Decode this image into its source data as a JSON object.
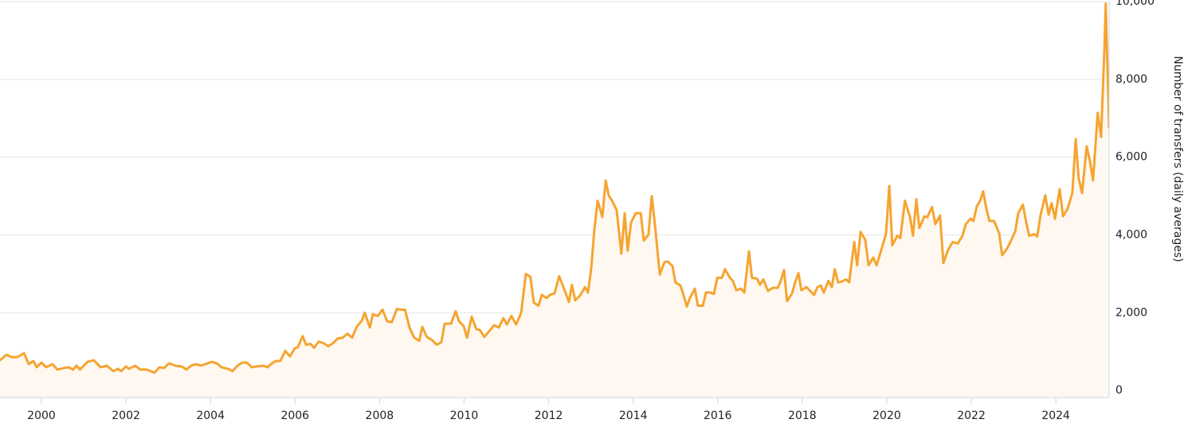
{
  "chart_data": {
    "type": "area",
    "y_label": "Number of transfers (daily averages)",
    "xlim": [
      1999.02,
      2025.26
    ],
    "xticks": [
      2000,
      2002,
      2004,
      2006,
      2008,
      2010,
      2012,
      2014,
      2016,
      2018,
      2020,
      2022,
      2024
    ],
    "ylim": [
      -180,
      10000
    ],
    "yticks": [
      0,
      {
        "value": 2000,
        "label": "2,000"
      },
      {
        "value": 4000,
        "label": "4,000"
      },
      {
        "value": 6000,
        "label": "6,000"
      },
      {
        "value": 8000,
        "label": "8,000"
      },
      {
        "value": 10000,
        "label": "10,000"
      }
    ],
    "grid": true,
    "color": "#f5a431",
    "fill_color": "#fff8f0",
    "x": [
      1999.02,
      1999.17,
      1999.3,
      1999.43,
      1999.59,
      1999.7,
      1999.81,
      1999.89,
      2000.0,
      2000.11,
      2000.26,
      2000.38,
      2000.53,
      2000.64,
      2000.75,
      2000.83,
      2000.91,
      2001.09,
      2001.24,
      2001.4,
      2001.55,
      2001.7,
      2001.81,
      2001.89,
      2002.0,
      2002.07,
      2002.22,
      2002.34,
      2002.49,
      2002.68,
      2002.79,
      2002.9,
      2003.02,
      2003.17,
      2003.32,
      2003.43,
      2003.54,
      2003.66,
      2003.77,
      2003.88,
      2004.03,
      2004.15,
      2004.26,
      2004.41,
      2004.52,
      2004.64,
      2004.75,
      2004.86,
      2004.98,
      2005.09,
      2005.24,
      2005.35,
      2005.43,
      2005.54,
      2005.65,
      2005.77,
      2005.88,
      2005.99,
      2006.07,
      2006.18,
      2006.26,
      2006.37,
      2006.45,
      2006.56,
      2006.67,
      2006.79,
      2006.9,
      2007.01,
      2007.13,
      2007.24,
      2007.35,
      2007.46,
      2007.58,
      2007.65,
      2007.77,
      2007.84,
      2007.96,
      2008.07,
      2008.18,
      2008.29,
      2008.41,
      2008.52,
      2008.6,
      2008.71,
      2008.82,
      2008.94,
      2009.01,
      2009.12,
      2009.24,
      2009.35,
      2009.46,
      2009.54,
      2009.69,
      2009.8,
      2009.88,
      2009.99,
      2010.07,
      2010.18,
      2010.29,
      2010.37,
      2010.48,
      2010.59,
      2010.71,
      2010.82,
      2010.93,
      2011.01,
      2011.12,
      2011.23,
      2011.35,
      2011.46,
      2011.57,
      2011.65,
      2011.76,
      2011.84,
      2011.95,
      2012.03,
      2012.14,
      2012.25,
      2012.37,
      2012.48,
      2012.55,
      2012.63,
      2012.74,
      2012.86,
      2012.93,
      2013.01,
      2013.08,
      2013.16,
      2013.27,
      2013.35,
      2013.42,
      2013.5,
      2013.61,
      2013.72,
      2013.8,
      2013.87,
      2013.95,
      2014.06,
      2014.18,
      2014.25,
      2014.36,
      2014.44,
      2014.51,
      2014.63,
      2014.74,
      2014.82,
      2014.93,
      2015.0,
      2015.12,
      2015.19,
      2015.27,
      2015.34,
      2015.46,
      2015.53,
      2015.65,
      2015.72,
      2015.83,
      2015.91,
      2015.99,
      2016.1,
      2016.17,
      2016.29,
      2016.36,
      2016.44,
      2016.55,
      2016.63,
      2016.74,
      2016.81,
      2016.93,
      2017.0,
      2017.08,
      2017.19,
      2017.3,
      2017.42,
      2017.49,
      2017.57,
      2017.64,
      2017.76,
      2017.83,
      2017.91,
      2017.98,
      2018.1,
      2018.17,
      2018.28,
      2018.36,
      2018.44,
      2018.51,
      2018.62,
      2018.7,
      2018.77,
      2018.85,
      2018.93,
      2019.04,
      2019.11,
      2019.23,
      2019.3,
      2019.38,
      2019.49,
      2019.57,
      2019.68,
      2019.76,
      2019.87,
      2019.98,
      2020.06,
      2020.13,
      2020.25,
      2020.32,
      2020.43,
      2020.55,
      2020.62,
      2020.7,
      2020.77,
      2020.89,
      2020.96,
      2021.07,
      2021.15,
      2021.26,
      2021.34,
      2021.45,
      2021.56,
      2021.68,
      2021.79,
      2021.87,
      2021.98,
      2022.05,
      2022.13,
      2022.21,
      2022.28,
      2022.36,
      2022.43,
      2022.54,
      2022.66,
      2022.73,
      2022.85,
      2022.96,
      2023.04,
      2023.11,
      2023.22,
      2023.3,
      2023.37,
      2023.49,
      2023.56,
      2023.64,
      2023.75,
      2023.83,
      2023.9,
      2023.98,
      2024.09,
      2024.17,
      2024.28,
      2024.39,
      2024.47,
      2024.54,
      2024.62,
      2024.73,
      2024.81,
      2024.88,
      2024.99,
      2025.07,
      2025.15,
      2025.18,
      2025.26
    ],
    "values": [
      780,
      920,
      860,
      860,
      960,
      680,
      760,
      600,
      720,
      600,
      680,
      540,
      580,
      600,
      540,
      640,
      540,
      740,
      780,
      600,
      640,
      500,
      560,
      500,
      620,
      560,
      640,
      540,
      540,
      460,
      600,
      580,
      700,
      640,
      620,
      540,
      640,
      680,
      640,
      680,
      740,
      700,
      600,
      560,
      500,
      640,
      720,
      720,
      600,
      620,
      640,
      600,
      680,
      760,
      760,
      1020,
      880,
      1080,
      1120,
      1400,
      1180,
      1200,
      1100,
      1260,
      1220,
      1140,
      1220,
      1340,
      1360,
      1460,
      1360,
      1640,
      1800,
      2000,
      1620,
      1960,
      1920,
      2080,
      1780,
      1760,
      2100,
      2080,
      2080,
      1620,
      1360,
      1280,
      1640,
      1380,
      1300,
      1180,
      1240,
      1720,
      1720,
      2040,
      1780,
      1660,
      1360,
      1900,
      1580,
      1560,
      1380,
      1520,
      1680,
      1620,
      1860,
      1700,
      1920,
      1700,
      2000,
      3000,
      2920,
      2260,
      2180,
      2460,
      2380,
      2460,
      2500,
      2940,
      2600,
      2280,
      2720,
      2320,
      2440,
      2660,
      2520,
      3160,
      4120,
      4880,
      4460,
      5400,
      5020,
      4880,
      4640,
      3520,
      4560,
      3600,
      4320,
      4560,
      4560,
      3860,
      4000,
      5000,
      4320,
      2980,
      3300,
      3320,
      3200,
      2780,
      2700,
      2460,
      2160,
      2380,
      2620,
      2180,
      2180,
      2520,
      2520,
      2480,
      2900,
      2900,
      3120,
      2900,
      2820,
      2580,
      2620,
      2520,
      3580,
      2900,
      2880,
      2720,
      2860,
      2560,
      2640,
      2640,
      2820,
      3100,
      2300,
      2500,
      2780,
      3020,
      2580,
      2660,
      2580,
      2460,
      2660,
      2700,
      2520,
      2820,
      2660,
      3120,
      2780,
      2800,
      2860,
      2780,
      3820,
      3220,
      4080,
      3880,
      3220,
      3420,
      3220,
      3620,
      4020,
      5260,
      3740,
      3980,
      3920,
      4880,
      4460,
      3980,
      4920,
      4180,
      4480,
      4460,
      4720,
      4280,
      4500,
      3280,
      3620,
      3820,
      3780,
      3980,
      4280,
      4420,
      4360,
      4740,
      4880,
      5120,
      4660,
      4360,
      4360,
      4040,
      3480,
      3660,
      3900,
      4100,
      4560,
      4780,
      4320,
      3980,
      4020,
      3960,
      4520,
      5020,
      4520,
      4820,
      4420,
      5180,
      4480,
      4680,
      5080,
      6460,
      5460,
      5080,
      6280,
      5880,
      5400,
      7140,
      6520,
      8820,
      9950,
      6760
    ]
  }
}
